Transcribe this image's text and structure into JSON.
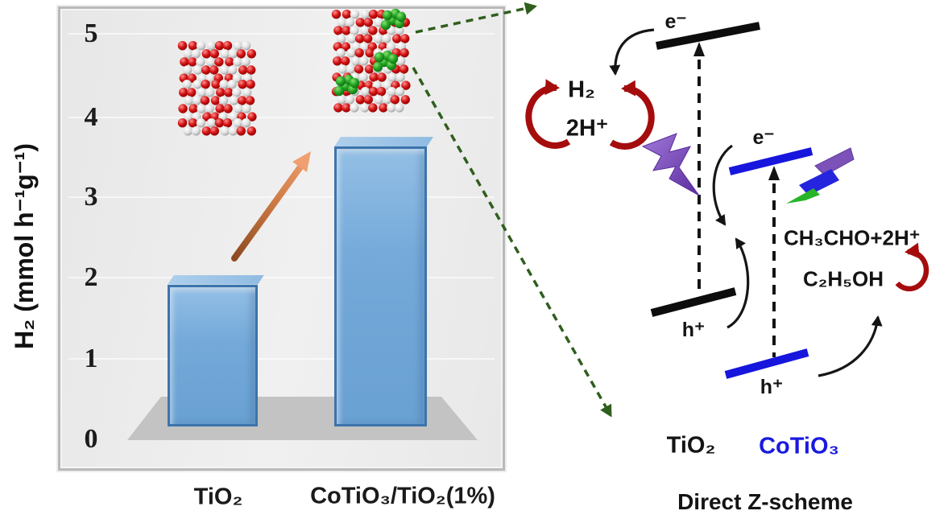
{
  "chart_data": {
    "type": "bar",
    "title": "",
    "categories": [
      "TiO₂",
      "CoTiO₃/TiO₂(1%)"
    ],
    "values": [
      1.8,
      3.55
    ],
    "xlabel": "",
    "ylabel": "H₂ (mmol h⁻¹g⁻¹)",
    "yticks": [
      5,
      4,
      3,
      2,
      1,
      0
    ],
    "ylim": [
      0,
      5.3
    ],
    "grid": false,
    "legend": "none",
    "bar_color": "#74a9d9",
    "annotations": [
      "orange rising arrow between bars indicating activity enhancement",
      "TiO₂ nanorod atomic model (red/white spheres) above first bar",
      "CoTiO₃/TiO₂ nanorod atomic model (red/white spheres with green clusters) above second bar"
    ]
  },
  "chart": {
    "ylabel": "H₂ (mmol h⁻¹g⁻¹)",
    "yticks": [
      "5",
      "4",
      "3",
      "2",
      "1",
      "0"
    ],
    "xlabels": [
      "TiO₂",
      "CoTiO₃/TiO₂(1%)"
    ]
  },
  "scheme": {
    "electron_tio2": "e⁻",
    "electron_cotio3": "e⁻",
    "hole_tio2": "h⁺",
    "hole_cotio3": "h⁺",
    "h2": "H₂",
    "protons": "2H⁺",
    "oxidation_products": "CH₃CHO+2H⁺",
    "ethanol": "C₂H₅OH",
    "tio2": "TiO₂",
    "cotio3": "CoTiO₃",
    "caption": "Direct Z-scheme"
  },
  "colors": {
    "bar_fill": "#74a9d9",
    "bar_border": "#3c74ab",
    "band_black": "#0d0d0d",
    "band_blue": "#1616dd",
    "redox_red": "#a50d0d",
    "dashed_green": "#2f5e1d",
    "orange_tail": "#8d4a20",
    "orange_head": "#f0a070",
    "cotio3_text": "#1a1ae0"
  }
}
